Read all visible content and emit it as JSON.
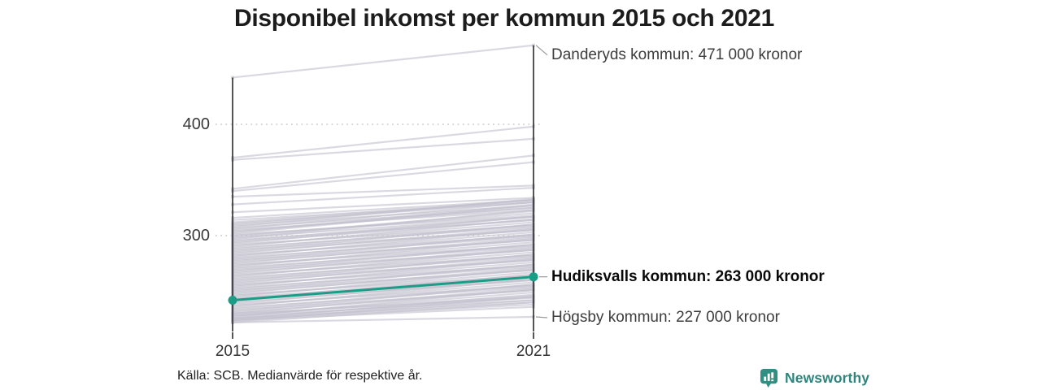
{
  "title": "Disponibel inkomst per kommun 2015 och 2021",
  "footer": {
    "source": "Källa: SCB. Medianvärde för respektive år.",
    "brand": "Newsworthy"
  },
  "colors": {
    "axis": "#2a2a2a",
    "grid": "#d0d0d0",
    "background_line": "#c3c1ce",
    "endpoint_cap": "#b8b6c4",
    "highlight": "#1a9c86",
    "connector": "#9a9a9a",
    "title_text": "#1c1c1c",
    "annotation_text": "#3d3d3d",
    "annotation_bold_text": "#0a0a0a",
    "brand_teal": "#2e857d",
    "brand_icon_teal": "#2f8f82"
  },
  "chart_data": {
    "type": "line",
    "subtype": "slopegraph",
    "title": "Disponibel inkomst per kommun 2015 och 2021",
    "x": [
      "2015",
      "2021"
    ],
    "unit": "tusen kronor (1000 kronor)",
    "ylim": [
      210,
      480
    ],
    "yticks": [
      400,
      300
    ],
    "grid": "dotted-horizontal",
    "legend": "none",
    "highlight_series": {
      "name": "Hudiksvalls kommun",
      "values": [
        242,
        263
      ],
      "color": "#1a9c86",
      "endpoint_dots": true
    },
    "annotations": [
      {
        "label": "Danderyds kommun: 471 000 kronor",
        "value_2021": 471,
        "bold": false,
        "label_offset_y": 12
      },
      {
        "label": "Hudiksvalls kommun: 263 000 kronor",
        "value_2021": 263,
        "bold": true,
        "label_offset_y": 0
      },
      {
        "label": "Högsby kommun: 227 000 kronor",
        "value_2021": 227,
        "bold": false,
        "label_offset_y": 1
      }
    ],
    "background_series_note": "unlabeled grey municipality lines, values estimated from pixels [value_2015, value_2021] in thousands of kronor",
    "background_series": [
      [
        442,
        471
      ],
      [
        370,
        398
      ],
      [
        368,
        387
      ],
      [
        342,
        372
      ],
      [
        340,
        366
      ],
      [
        335,
        345
      ],
      [
        328,
        343
      ],
      [
        321,
        334
      ],
      [
        316,
        332
      ],
      [
        314,
        330
      ],
      [
        312,
        332
      ],
      [
        311,
        330
      ],
      [
        310,
        332
      ],
      [
        309,
        327
      ],
      [
        308,
        333
      ],
      [
        307,
        325
      ],
      [
        306,
        330
      ],
      [
        305,
        323
      ],
      [
        304,
        325
      ],
      [
        303,
        328
      ],
      [
        302,
        327
      ],
      [
        301,
        318
      ],
      [
        300,
        320
      ],
      [
        299,
        322
      ],
      [
        298,
        317
      ],
      [
        297,
        323
      ],
      [
        296,
        314
      ],
      [
        295,
        317
      ],
      [
        294,
        314
      ],
      [
        293,
        317
      ],
      [
        292,
        309
      ],
      [
        291,
        312
      ],
      [
        290,
        315
      ],
      [
        289,
        308
      ],
      [
        288,
        310
      ],
      [
        287,
        305
      ],
      [
        286,
        310
      ],
      [
        285,
        305
      ],
      [
        284,
        307
      ],
      [
        283,
        300
      ],
      [
        282,
        303
      ],
      [
        281,
        306
      ],
      [
        280,
        299
      ],
      [
        279,
        301
      ],
      [
        278,
        296
      ],
      [
        277,
        301
      ],
      [
        276,
        296
      ],
      [
        275,
        298
      ],
      [
        274,
        291
      ],
      [
        273,
        294
      ],
      [
        272,
        297
      ],
      [
        271,
        290
      ],
      [
        270,
        292
      ],
      [
        269,
        287
      ],
      [
        268,
        292
      ],
      [
        267,
        287
      ],
      [
        266,
        289
      ],
      [
        265,
        282
      ],
      [
        264,
        285
      ],
      [
        263,
        288
      ],
      [
        262,
        281
      ],
      [
        261,
        283
      ],
      [
        260,
        278
      ],
      [
        259,
        283
      ],
      [
        258,
        278
      ],
      [
        257,
        280
      ],
      [
        256,
        273
      ],
      [
        255,
        276
      ],
      [
        254,
        279
      ],
      [
        253,
        272
      ],
      [
        252,
        274
      ],
      [
        251,
        269
      ],
      [
        250,
        274
      ],
      [
        249,
        269
      ],
      [
        248,
        271
      ],
      [
        247,
        264
      ],
      [
        246,
        267
      ],
      [
        245,
        270
      ],
      [
        244,
        263
      ],
      [
        243,
        265
      ],
      [
        242,
        260
      ],
      [
        241,
        265
      ],
      [
        240,
        260
      ],
      [
        239,
        262
      ],
      [
        238,
        255
      ],
      [
        237,
        258
      ],
      [
        236,
        261
      ],
      [
        235,
        254
      ],
      [
        234,
        256
      ],
      [
        233,
        251
      ],
      [
        232,
        256
      ],
      [
        231,
        251
      ],
      [
        230,
        253
      ],
      [
        229,
        246
      ],
      [
        228,
        249
      ],
      [
        227,
        252
      ],
      [
        226,
        245
      ],
      [
        225,
        247
      ],
      [
        224,
        242
      ],
      [
        223,
        245
      ],
      [
        222,
        240
      ],
      [
        226,
        240
      ],
      [
        224,
        236
      ],
      [
        228,
        242
      ],
      [
        225,
        238
      ],
      [
        230,
        244
      ],
      [
        222,
        227
      ]
    ]
  }
}
